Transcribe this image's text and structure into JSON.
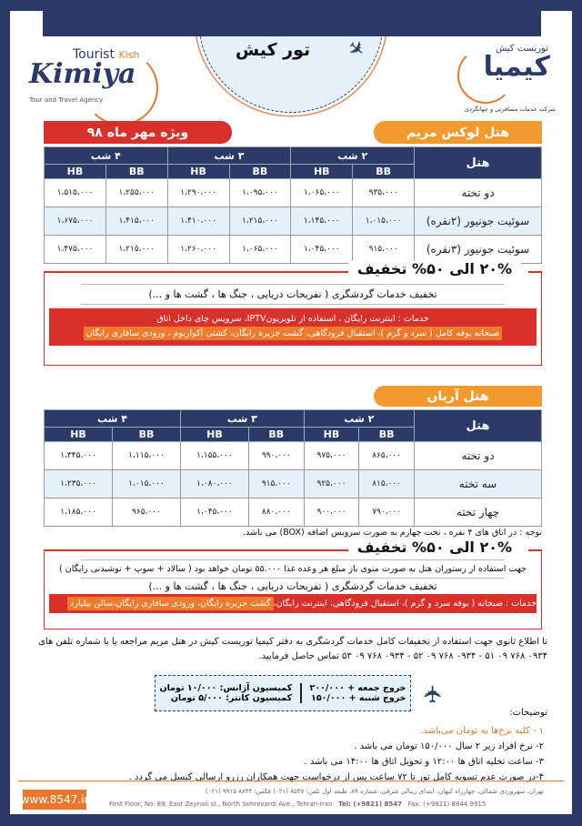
{
  "header": {
    "title": "تور کیش",
    "left_logo": {
      "tourist": "Tourist",
      "kish": "Kish",
      "brand": "Kimiya",
      "tagline": "Tour and Travel Agency"
    },
    "right_logo": {
      "brand": "کیمیا",
      "sub": "توریست کیش",
      "tagline": "شرکت خدمات مسافرتی و جهانگردی"
    }
  },
  "special": "ویژه مهر ماه ۹۸",
  "hotel1": {
    "name": "هتل لوکس مریم",
    "col_hotel": "هتل",
    "nights": [
      "۲ شب",
      "۳ شب",
      "۴ شب"
    ],
    "sub": [
      "BB",
      "HB"
    ],
    "rows": [
      {
        "room": "دو تخته",
        "prices": [
          "۹۳۵،۰۰۰",
          "۱،۰۶۵،۰۰۰",
          "۱،۰۹۵،۰۰۰",
          "۱،۲۹۰،۰۰۰",
          "۱،۲۵۵،۰۰۰",
          "۱،۵۱۵،۰۰۰"
        ]
      },
      {
        "room": "سوئیت جونیور (۲نفره)",
        "prices": [
          "۱،۰۱۵،۰۰۰",
          "۱،۱۴۵،۰۰۰",
          "۱،۲۱۵،۰۰۰",
          "۱،۴۱۰،۰۰۰",
          "۱،۴۱۵،۰۰۰",
          "۱،۶۷۵،۰۰۰"
        ]
      },
      {
        "room": "سوئیت جونیور (۳نفره)",
        "prices": [
          "۹۱۵،۰۰۰",
          "۱،۰۴۵،۰۰۰",
          "۱،۰۶۵،۰۰۰",
          "۱،۲۶۰،۰۰۰",
          "۱،۲۱۵،۰۰۰",
          "۱،۴۷۵،۰۰۰"
        ]
      }
    ]
  },
  "discount1": {
    "heading": "۲۰% الی ۵۰% تخفیف",
    "line": "تخفیف خدمات گردشگری ( تفریحات دریایی ، جنگ ها ، گشت ها و ...)",
    "services1": "خدمات :  اینترنت رایگان ، استفاده از تلویزیونIPTV، سرویس چای داخل اتاق",
    "services2": "صبحانه بوفه کامل ( سرد و گرم )، استقبال فرودگاهی، گشت جزیره رایگان، کشتی آکواریوم ، ورودی سافاری رایگان"
  },
  "hotel2": {
    "name": "هتل آریان",
    "col_hotel": "هتل",
    "nights": [
      "۲ شب",
      "۳ شب",
      "۴ شب"
    ],
    "sub": [
      "BB",
      "HB"
    ],
    "rows": [
      {
        "room": "دو تخته",
        "prices": [
          "۸۶۵،۰۰۰",
          "۹۷۵،۰۰۰",
          "۹۹۰،۰۰۰",
          "۱،۱۵۵،۰۰۰",
          "۱،۱۱۵،۰۰۰",
          "۱،۳۴۵،۰۰۰"
        ]
      },
      {
        "room": "سه تخته",
        "prices": [
          "۸۱۵،۰۰۰",
          "۹۲۵،۰۰۰",
          "۹۱۵،۰۰۰",
          "۱،۰۸۰،۰۰۰",
          "۱،۰۱۵،۰۰۰",
          "۱،۲۳۵،۰۰۰"
        ]
      },
      {
        "room": "چهار تخته",
        "prices": [
          "۷۹۰،۰۰۰",
          "۹۰۰،۰۰۰",
          "۸۸۰،۰۰۰",
          "۱،۰۴۵،۰۰۰",
          "۹۶۵،۰۰۰",
          "۱،۱۸۵،۰۰۰"
        ]
      }
    ],
    "note": "توجه : در اتاق های ۴ نفره ، تخت چهارم به صورت سرویس اضافه (BOX) می باشد."
  },
  "discount2": {
    "heading": "۲۰% الی ۵۰% تخفیف",
    "line1": "جهت استفاده از رستوران هتل به صورت منوی باز مبلغ هر وعده غذا ۵۵.۰۰۰ تومان خواهد بود ( سالاد + سوپ + نوشیدنی رایگان )",
    "line2": "تخفیف خدمات گردشگری ( تفریحات دریایی ، جنگ ها ، گشت ها و ...)",
    "services_a": "خدمات :  صبحانه  ( بوفه سرد و گرم )، استقبال فرودگاهی، اینترنت رایگان،",
    "services_b": "گشت جزیره رایگان، ورودی سافاری رایگان،سالن بیلیارد"
  },
  "info": {
    "line1": "تا اطلاع ثانوی جهت استفاده از تخفیفات کامل خدمات گردشگری به دفتر کیمیا توریست کیش در هتل مریم مراجعه یا با شماره تلفن های",
    "line2": "۰۹۳۴ ۷۶۸ ۰۹ ۵۱ - ۰۹۳۴ ۷۶۸ ۰۹ ۵۲ - ۰۹۳۴ ۷۶۸ ۰۹ ۵۳  تماس حاصل فرمایید."
  },
  "commission": {
    "fri": "خروج جمعه + ۲۰۰/۰۰۰",
    "sat": "خروج شنبه + ۱۵۰/۰۰۰",
    "agency": "کمیسیون آژانس: ۱۰/۰۰۰ تومان",
    "counter": "کمیسیون کانتر: ۵/۰۰۰ تومان"
  },
  "notes": {
    "title": "توضیحات:",
    "items": [
      "۱ - کلیه نرخ‌ها به تومان می‌باشد.",
      "۲- نرخ افراد زیر ۲ سال  ۱۵۰/۰۰۰ تومان می باشد .",
      "۳- ساعت تخلیه اتاق ها ۱۲:۰۰ و تحویل اتاق ها ۱۴:۰۰ می باشد .",
      "۴-در صورت عدم تسویه کامل تور تا ۷۲ ساعت پس از درخواست جهت همکاران رزرو ارسالی کنسل می گردد ."
    ],
    "first_color": "#e8782e"
  },
  "footer": {
    "website": "www.8547.ir",
    "address_fa": "تهران، سهروردی شمالی، چهارراه کیهان، ابتدای زینالی شرقی، شماره ۸۹، طبقه اول    تلفن: ۸۵۴۷ (۰۲۱)    فکس: ۸۸۴۴ ۹۹۱۵ (۰۲۱)",
    "address_en": "First Floor, No. 89, East Zeynali st., North Sohrevardi Ave., Tehran-Iran",
    "tel": "Tel: (+9821) 8547",
    "fax": "Fax: (+9821) 8844 9915"
  },
  "colors": {
    "navy": "#2c3a6a",
    "red": "#d8312c",
    "orange": "#f29a2e",
    "light_blue": "#e4f0fa"
  }
}
